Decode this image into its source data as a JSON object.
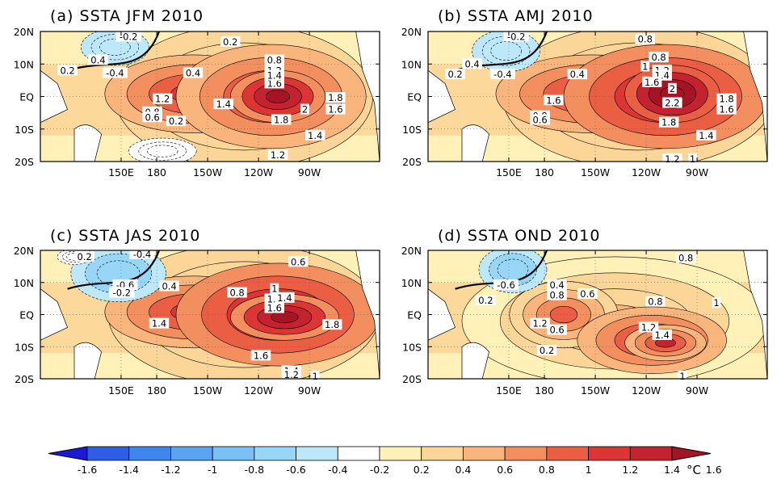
{
  "panels": [
    {
      "id": "a",
      "title": "(a) SSTA JFM 2010",
      "labels": [
        "0.2",
        "-0.2",
        "0.2",
        "0.4",
        "-0.4",
        "0.4",
        "0.8",
        "1.2",
        "1.4",
        "1.6",
        "1.2",
        "1.4",
        "1.8",
        "2",
        "1.6",
        "1.8",
        "0.8",
        "0.6",
        "0.2",
        "1.4",
        "1.2"
      ]
    },
    {
      "id": "b",
      "title": "(b) SSTA AMJ 2010",
      "labels": [
        "-0.2",
        "0.8",
        "0.4",
        "0.2",
        "-0.4",
        "0.4",
        "0.8",
        "1",
        "1.2",
        "1.4",
        "1.6",
        "2",
        "1.6",
        "2.2",
        "1.8",
        "1.8",
        "1.6",
        "0.8",
        "0.6",
        "1.4",
        "1.2",
        "1"
      ]
    },
    {
      "id": "c",
      "title": "(c) SSTA JAS 2010",
      "labels": [
        "0.2",
        "-0.4",
        "0.6",
        "-0.6",
        "0.4",
        "-0.2",
        "0.8",
        "1",
        "1.2",
        "1.4",
        "1.6",
        "1.4",
        "1.8",
        "1.6",
        "1.4",
        "1.2",
        "1"
      ]
    },
    {
      "id": "d",
      "title": "(d) SSTA OND 2010",
      "labels": [
        "0.8",
        "-0.6",
        "0.4",
        "0.2",
        "0.6",
        "0.8",
        "0.8",
        "1",
        "1.2",
        "0.6",
        "1.2",
        "1.4",
        "0.2",
        "1"
      ]
    }
  ],
  "axes": {
    "lat_ticks": [
      "20N",
      "10N",
      "EQ",
      "10S",
      "20S"
    ],
    "lon_ticks": [
      "150E",
      "180",
      "150W",
      "120W",
      "90W"
    ]
  },
  "colorbar": {
    "ticks": [
      "-1.6",
      "-1.4",
      "-1.2",
      "-1",
      "-0.8",
      "-0.6",
      "-0.4",
      "-0.2",
      "0.2",
      "0.4",
      "0.6",
      "0.8",
      "1",
      "1.2",
      "1.4",
      "1.6"
    ],
    "colors": [
      "#1a1ad6",
      "#2e5ee8",
      "#3f86ec",
      "#5aa4f1",
      "#78c0f5",
      "#98d6f7",
      "#bde8fa",
      "#ffffff",
      "#fff1b8",
      "#fcd598",
      "#f9b57c",
      "#f38f5e",
      "#ea5f44",
      "#dc3634",
      "#c52230",
      "#a51424"
    ],
    "unit": "°C"
  }
}
